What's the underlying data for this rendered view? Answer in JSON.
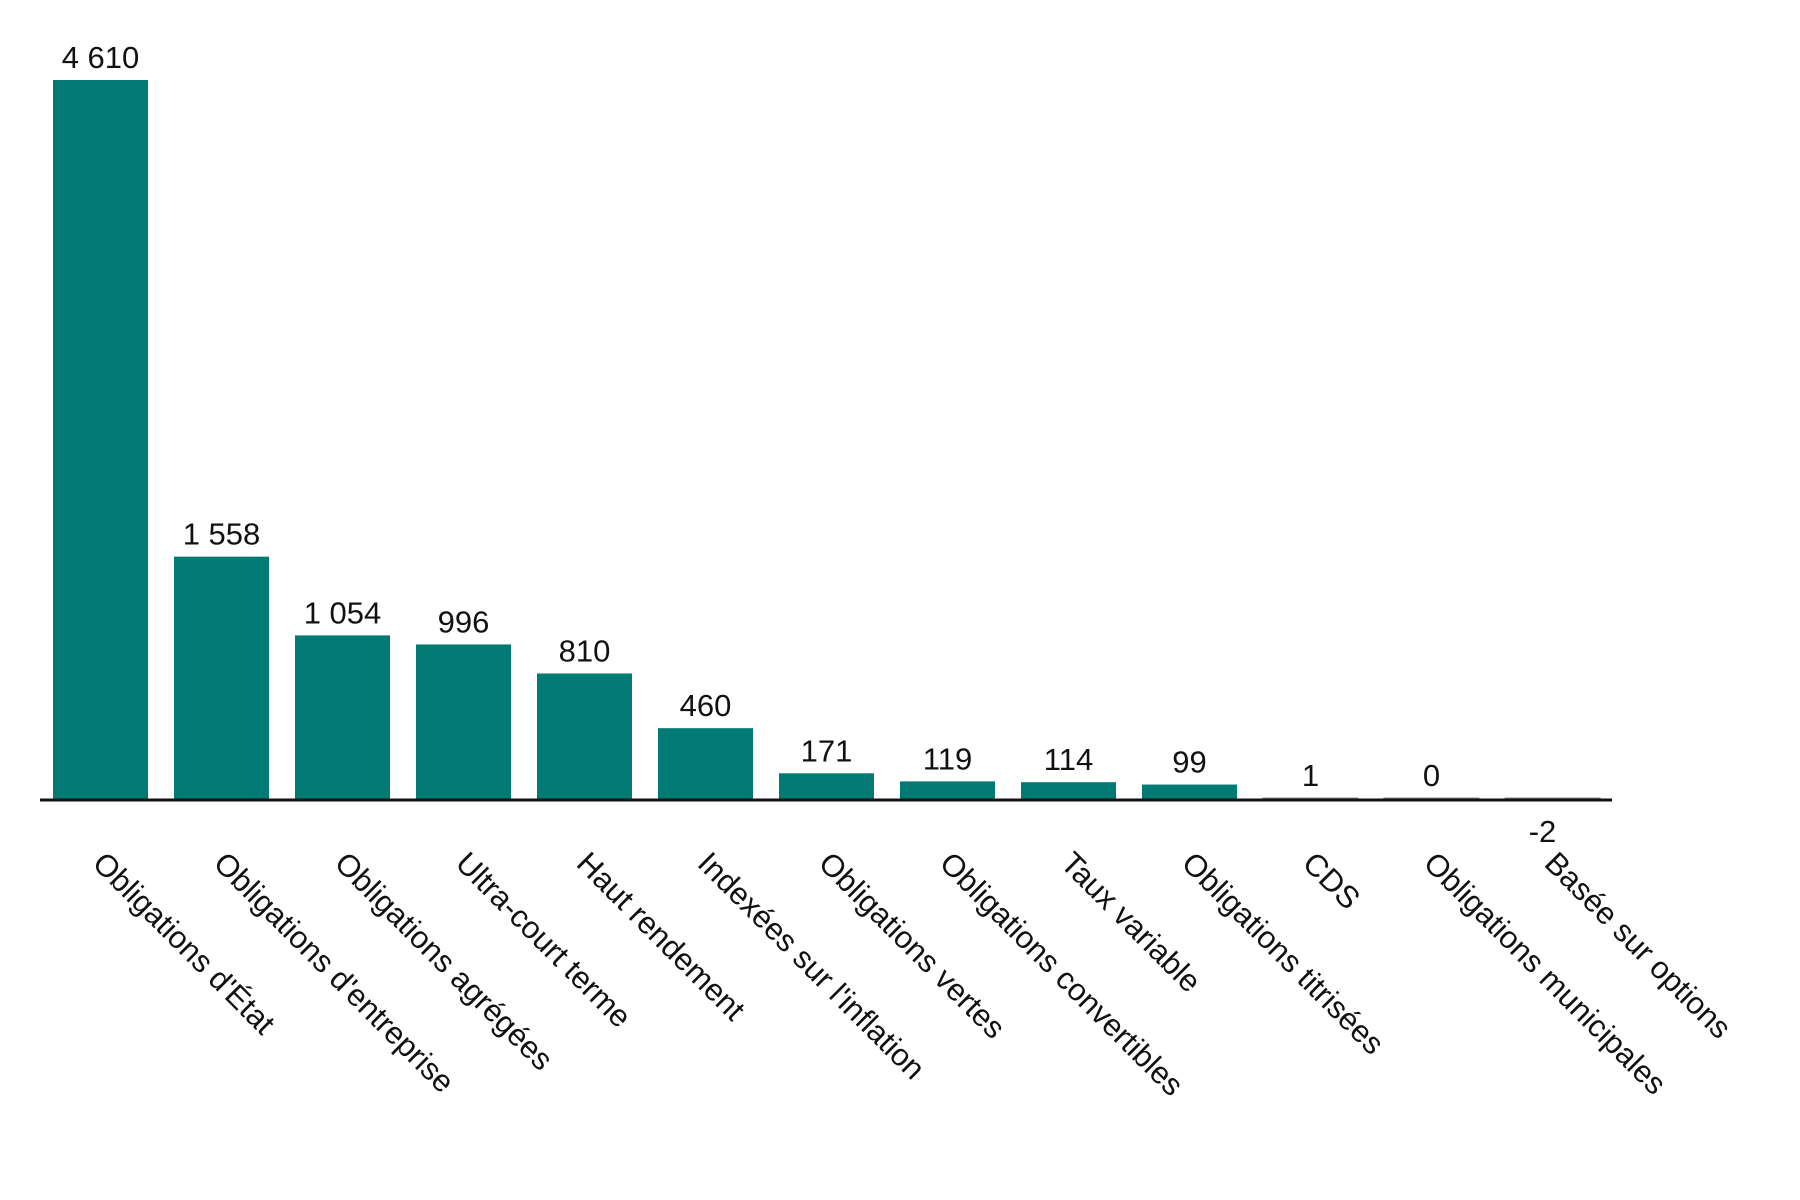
{
  "chart_data": {
    "type": "bar",
    "title": "",
    "xlabel": "",
    "ylabel": "",
    "grid": false,
    "legend": "none",
    "ylim": [
      -2,
      4610
    ],
    "bar_color": "#007a72",
    "baseline_color": "#111111",
    "categories": [
      "Obligations d'État",
      "Obligations d'entreprise",
      "Obligations agrégées",
      "Ultra-court terme",
      "Haut rendement",
      "Indexées sur l'inflation",
      "Obligations vertes",
      "Obligations convertibles",
      "Taux variable",
      "Obligations titrisées",
      "CDS",
      "Obligations municipales",
      "Basée sur options"
    ],
    "values": [
      4610,
      1558,
      1054,
      996,
      810,
      460,
      171,
      119,
      114,
      99,
      1,
      0,
      -2
    ],
    "value_labels": [
      "4 610",
      "1 558",
      "1 054",
      "996",
      "810",
      "460",
      "171",
      "119",
      "114",
      "99",
      "1",
      "0",
      "-2"
    ]
  }
}
